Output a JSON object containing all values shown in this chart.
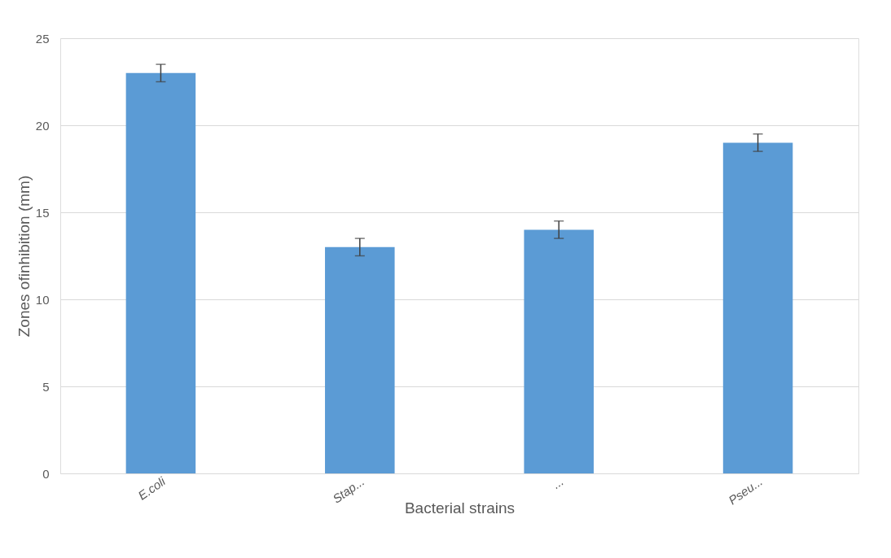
{
  "chart_data": {
    "type": "bar",
    "xlabel": "Bacterial strains",
    "ylabel": "Zones ofinhibition (mm)",
    "categories": [
      "E.coli",
      "Stap...",
      "...",
      "Pseu..."
    ],
    "values": [
      23,
      13,
      14,
      19
    ],
    "errors": [
      0.5,
      0.5,
      0.5,
      0.5
    ],
    "color": "#5b9bd5",
    "ylim": [
      0,
      25
    ],
    "yticks": [
      0,
      5,
      10,
      15,
      20,
      25
    ],
    "grid": "y"
  }
}
